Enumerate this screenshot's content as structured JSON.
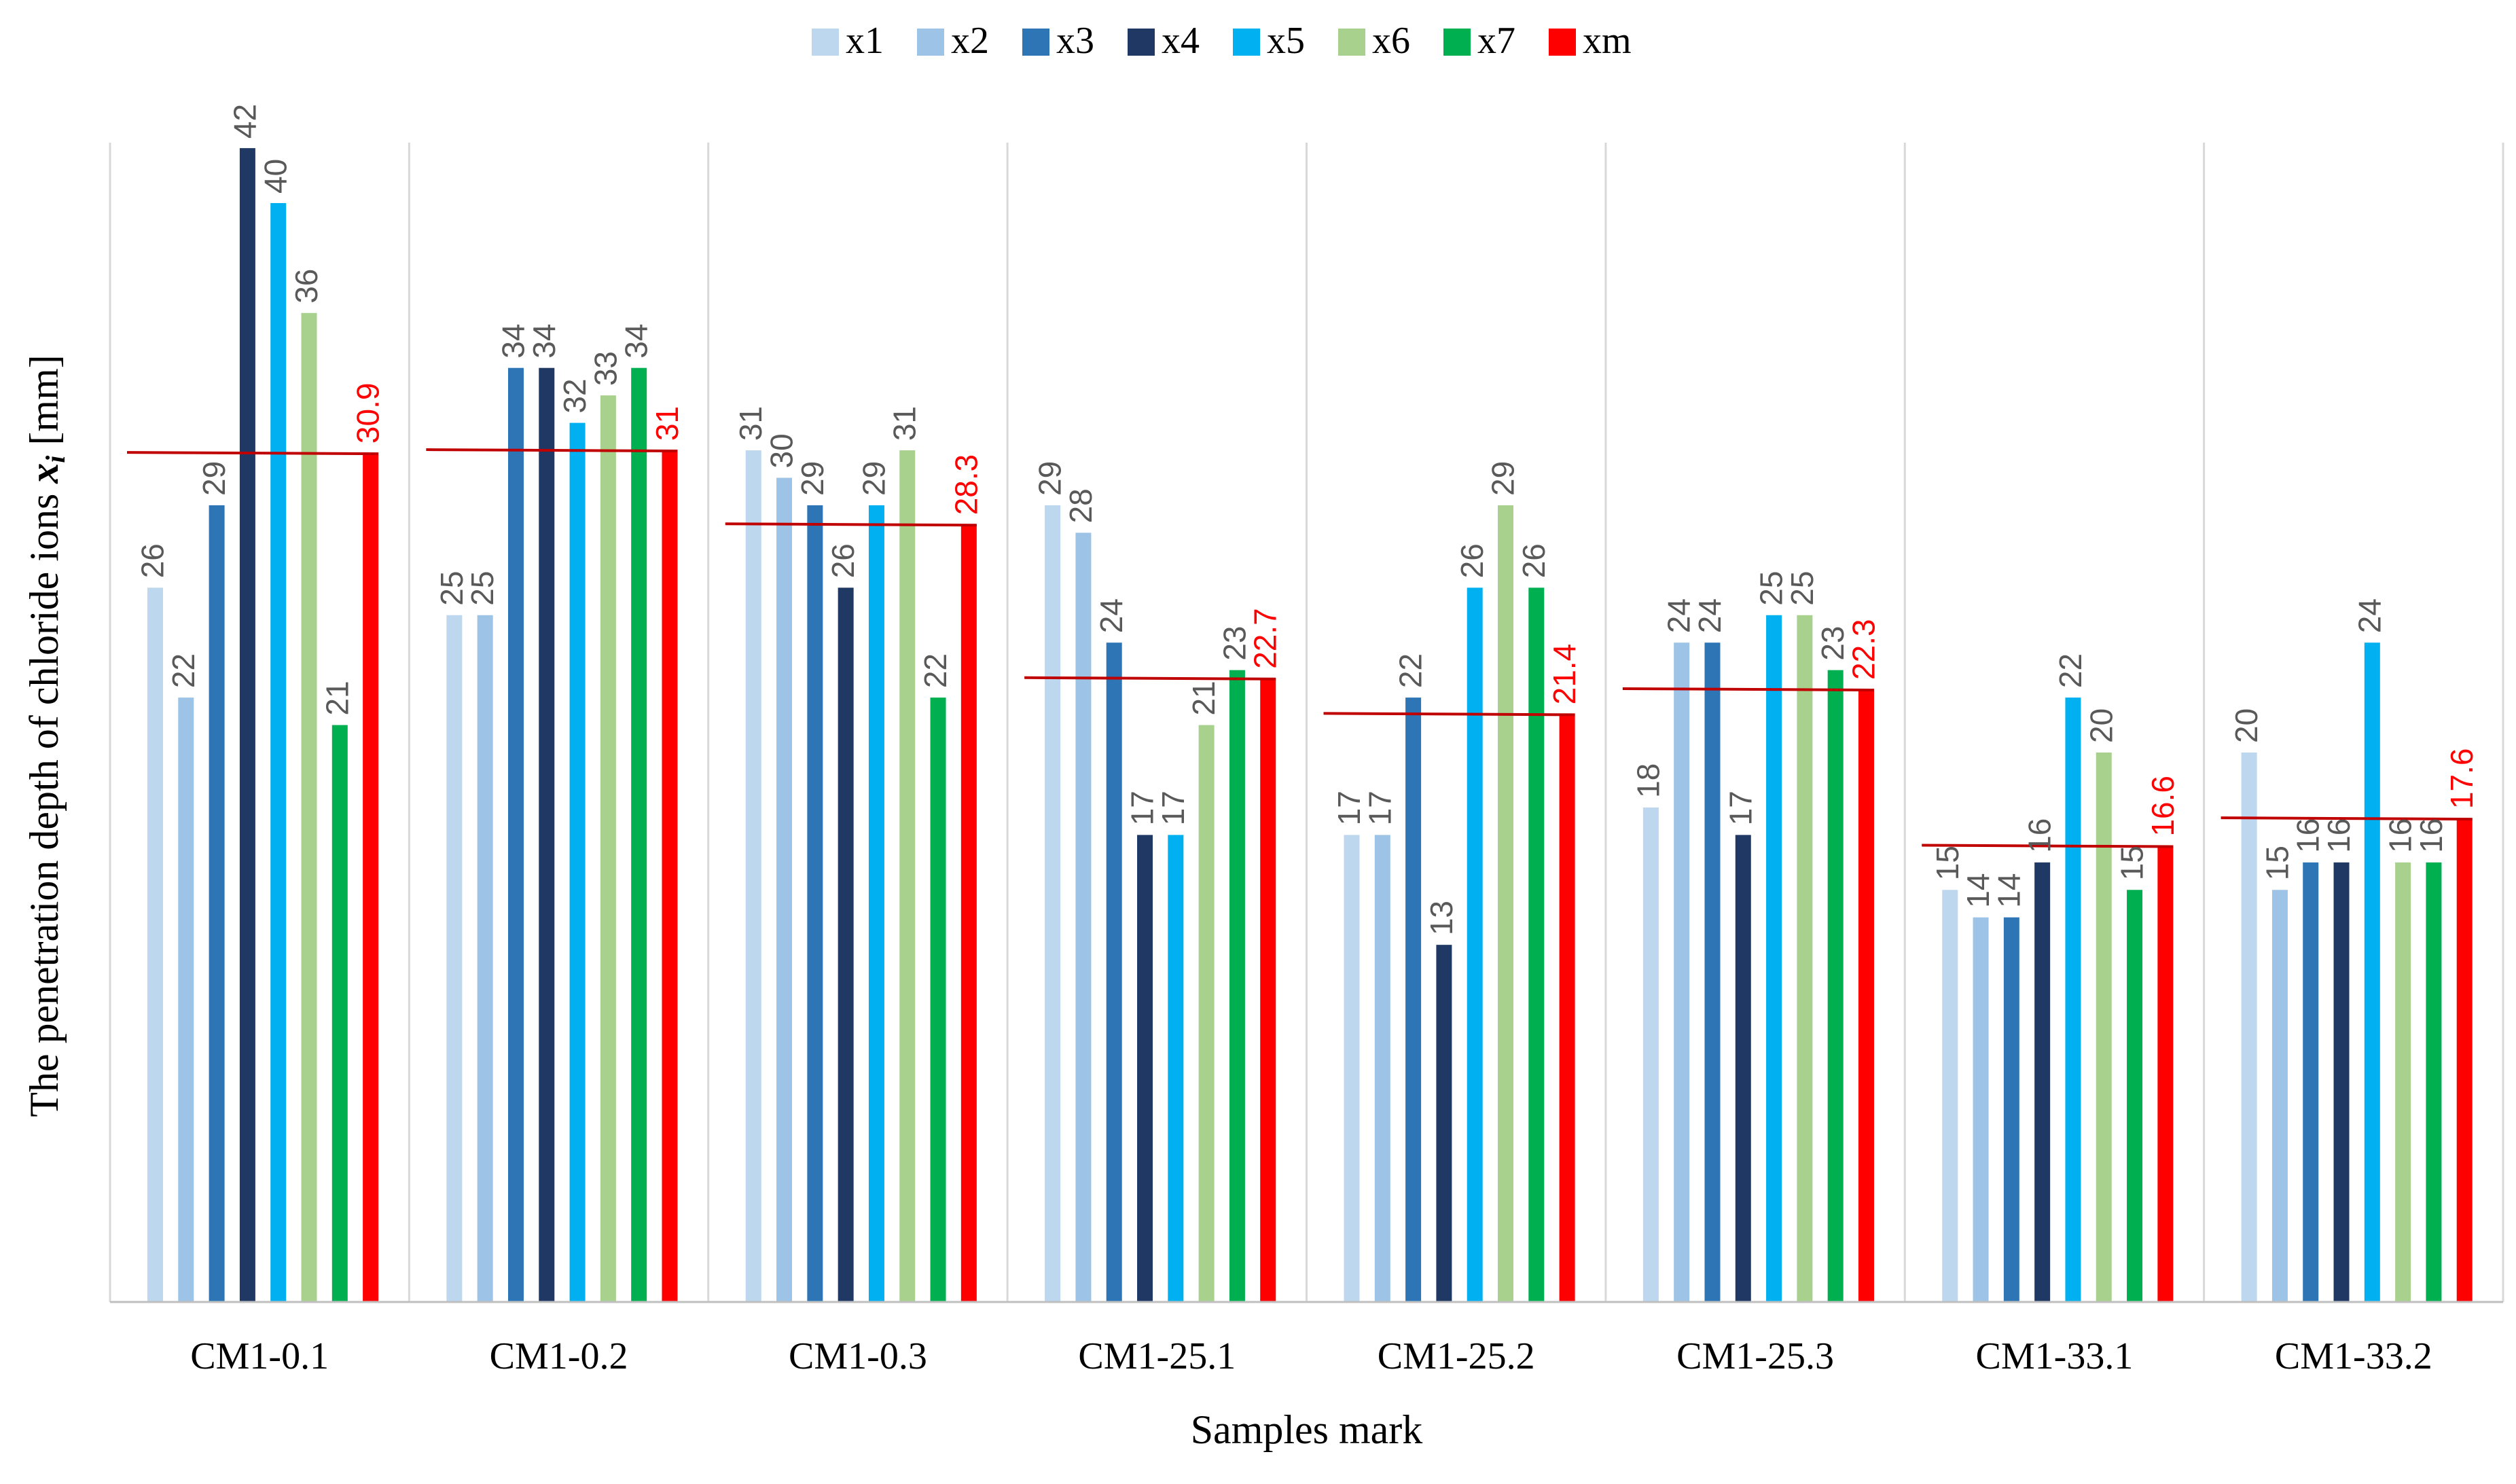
{
  "chart_data": {
    "type": "bar",
    "title": "",
    "xlabel": "Samples mark",
    "ylabel_prefix": "The penetration depth  of chloride ions ",
    "ylabel_var": "x",
    "ylabel_sub": "i",
    "ylabel_suffix": " [mm]",
    "ylim": [
      0,
      45
    ],
    "grid": "vertical separators between categories",
    "legend_position": "top-center",
    "categories": [
      "CM1-0.1",
      "CM1-0.2",
      "CM1-0.3",
      "CM1-25.1",
      "CM1-25.2",
      "CM1-25.3",
      "CM1-33.1",
      "CM1-33.2"
    ],
    "series": [
      {
        "name": "x1",
        "color": "#BDD7EE",
        "values": [
          26,
          25,
          31,
          29,
          17,
          18,
          15,
          20
        ]
      },
      {
        "name": "x2",
        "color": "#9DC3E6",
        "values": [
          22,
          25,
          30,
          28,
          17,
          24,
          14,
          15
        ]
      },
      {
        "name": "x3",
        "color": "#2E75B6",
        "values": [
          29,
          34,
          29,
          24,
          22,
          24,
          14,
          16
        ]
      },
      {
        "name": "x4",
        "color": "#1F3864",
        "values": [
          42,
          34,
          26,
          17,
          13,
          17,
          16,
          16
        ]
      },
      {
        "name": "x5",
        "color": "#00B0F0",
        "values": [
          40,
          32,
          29,
          17,
          26,
          25,
          22,
          24
        ]
      },
      {
        "name": "x6",
        "color": "#A9D18E",
        "values": [
          36,
          33,
          31,
          21,
          29,
          25,
          20,
          16
        ]
      },
      {
        "name": "x7",
        "color": "#00B050",
        "values": [
          21,
          34,
          22,
          23,
          26,
          23,
          15,
          16
        ]
      },
      {
        "name": "xm",
        "color": "#FF0000",
        "values": [
          30.9,
          31,
          28.3,
          22.7,
          21.4,
          22.3,
          16.6,
          17.6
        ]
      }
    ],
    "data_labels": [
      [
        "26",
        "22",
        "29",
        "42",
        "40",
        "36",
        "21",
        "30.9"
      ],
      [
        "25",
        "25",
        "34",
        "34",
        "32",
        "33",
        "34",
        "31"
      ],
      [
        "31",
        "30",
        "29",
        "26",
        "29",
        "31",
        "22",
        "28.3"
      ],
      [
        "29",
        "28",
        "24",
        "17",
        "17",
        "21",
        "23",
        "22.7"
      ],
      [
        "17",
        "17",
        "22",
        "13",
        "26",
        "29",
        "26",
        "21.4"
      ],
      [
        "18",
        "24",
        "24",
        "17",
        "25",
        "25",
        "23",
        "22.3"
      ],
      [
        "15",
        "14",
        "14",
        "16",
        "22",
        "20",
        "15",
        "16.6"
      ],
      [
        "20",
        "15",
        "16",
        "16",
        "24",
        "16",
        "16",
        "17.6"
      ]
    ],
    "mean_line_color": "#C00000",
    "label_color": "#595959",
    "mean_label_color": "#FF0000"
  }
}
